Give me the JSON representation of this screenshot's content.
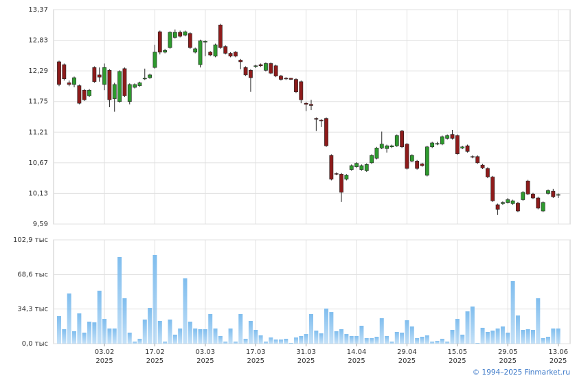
{
  "chart_data": [
    {
      "type": "candlestick",
      "categories": [
        null,
        null,
        null,
        null,
        null,
        null,
        null,
        null,
        null,
        [
          "03.02",
          "2025"
        ],
        null,
        null,
        null,
        null,
        null,
        null,
        null,
        null,
        null,
        [
          "17.02",
          "2025"
        ],
        null,
        null,
        null,
        null,
        null,
        null,
        null,
        null,
        null,
        [
          "03.03",
          "2025"
        ],
        null,
        null,
        null,
        null,
        null,
        null,
        null,
        null,
        null,
        [
          "17.03",
          "2025"
        ],
        null,
        null,
        null,
        null,
        null,
        null,
        null,
        null,
        null,
        [
          "31.03",
          "2025"
        ],
        null,
        null,
        null,
        null,
        null,
        null,
        null,
        null,
        null,
        [
          "14.04",
          "2025"
        ],
        null,
        null,
        null,
        null,
        null,
        null,
        null,
        null,
        null,
        [
          "29.04",
          "2025"
        ],
        null,
        null,
        null,
        null,
        null,
        null,
        null,
        null,
        null,
        [
          "15.05",
          "2025"
        ],
        null,
        null,
        null,
        null,
        null,
        null,
        null,
        null,
        null,
        [
          "29.05",
          "2025"
        ],
        null,
        null,
        null,
        null,
        null,
        null,
        null,
        null,
        null,
        [
          "13.06",
          "2025"
        ]
      ],
      "open": [
        12.45,
        12.4,
        12.08,
        12.05,
        12.03,
        11.95,
        11.85,
        12.35,
        12.22,
        12.05,
        12.3,
        11.8,
        11.75,
        12.33,
        11.75,
        12.0,
        12.03,
        12.15,
        12.17,
        12.35,
        12.98,
        12.62,
        12.7,
        12.88,
        12.97,
        12.92,
        12.95,
        12.62,
        12.4,
        12.8,
        12.62,
        12.55,
        13.1,
        12.72,
        12.6,
        12.62,
        12.48,
        12.35,
        12.3,
        12.37,
        12.4,
        12.3,
        12.42,
        12.38,
        12.2,
        12.16,
        12.16,
        12.14,
        12.1,
        11.72,
        11.7,
        11.45,
        11.42,
        11.45,
        10.8,
        10.48,
        10.47,
        10.38,
        10.55,
        10.6,
        10.55,
        10.53,
        10.67,
        10.75,
        10.93,
        10.92,
        10.95,
        10.97,
        11.23,
        11.0,
        10.7,
        10.7,
        10.65,
        10.45,
        10.95,
        11.0,
        11.0,
        11.1,
        11.17,
        11.15,
        10.93,
        10.97,
        10.78,
        10.78,
        10.63,
        10.57,
        10.42,
        9.93,
        9.95,
        9.97,
        9.95,
        9.96,
        10.02,
        10.35,
        10.12,
        10.05,
        9.82,
        10.13,
        10.17,
        10.1
      ],
      "high": [
        12.47,
        12.42,
        12.12,
        12.19,
        12.05,
        11.97,
        11.97,
        12.37,
        12.35,
        12.42,
        12.32,
        12.08,
        12.3,
        12.35,
        12.07,
        12.07,
        12.1,
        12.33,
        12.24,
        12.75,
        13.0,
        12.68,
        12.99,
        13.02,
        13.0,
        13.0,
        12.97,
        12.7,
        12.84,
        12.83,
        12.64,
        12.77,
        13.12,
        12.74,
        12.62,
        12.64,
        12.5,
        12.37,
        12.32,
        12.4,
        12.42,
        12.44,
        12.44,
        12.4,
        12.22,
        12.18,
        12.17,
        12.16,
        12.12,
        11.74,
        11.78,
        11.47,
        11.44,
        11.47,
        10.82,
        10.5,
        10.49,
        10.47,
        10.64,
        10.68,
        10.64,
        10.66,
        10.82,
        10.95,
        11.22,
        10.99,
        10.99,
        11.17,
        11.25,
        11.02,
        10.82,
        10.72,
        10.67,
        10.97,
        11.04,
        11.04,
        11.15,
        11.17,
        11.25,
        11.17,
        10.97,
        10.99,
        10.8,
        10.8,
        10.65,
        10.59,
        10.44,
        9.95,
        9.99,
        10.05,
        10.02,
        9.98,
        10.17,
        10.37,
        10.14,
        10.07,
        9.99,
        10.2,
        10.21,
        10.13
      ],
      "low": [
        12.02,
        12.12,
        12.02,
        12.0,
        11.7,
        11.76,
        11.83,
        12.08,
        12.1,
        11.95,
        11.65,
        11.57,
        11.73,
        11.83,
        11.7,
        11.98,
        12.01,
        12.13,
        12.15,
        12.33,
        12.58,
        12.6,
        12.68,
        12.86,
        12.88,
        12.9,
        12.68,
        12.6,
        12.35,
        12.55,
        12.55,
        12.53,
        12.68,
        12.58,
        12.53,
        12.53,
        12.32,
        12.2,
        11.92,
        12.34,
        12.36,
        12.28,
        12.23,
        12.18,
        12.12,
        12.13,
        12.13,
        11.9,
        11.72,
        11.58,
        11.6,
        11.23,
        11.3,
        10.95,
        10.36,
        10.45,
        9.98,
        10.36,
        10.53,
        10.58,
        10.53,
        10.51,
        10.65,
        10.73,
        10.91,
        10.85,
        10.93,
        10.95,
        10.93,
        10.55,
        10.68,
        10.55,
        10.6,
        10.43,
        10.93,
        10.98,
        10.98,
        11.08,
        11.08,
        10.81,
        10.91,
        10.85,
        10.75,
        10.65,
        10.56,
        10.4,
        9.98,
        9.75,
        9.93,
        9.95,
        9.93,
        9.8,
        10.0,
        10.1,
        10.03,
        9.85,
        9.8,
        10.11,
        10.05,
        10.05
      ],
      "close": [
        12.05,
        12.15,
        12.05,
        12.17,
        11.72,
        11.78,
        11.95,
        12.1,
        12.18,
        12.35,
        11.78,
        12.05,
        12.28,
        11.85,
        12.05,
        12.05,
        12.08,
        12.16,
        12.22,
        12.62,
        12.62,
        12.65,
        12.97,
        12.97,
        12.9,
        12.98,
        12.7,
        12.68,
        12.82,
        12.81,
        12.57,
        12.75,
        12.7,
        12.6,
        12.55,
        12.55,
        12.45,
        12.22,
        12.17,
        12.38,
        12.38,
        12.42,
        12.25,
        12.2,
        12.14,
        12.15,
        12.14,
        11.92,
        11.78,
        11.7,
        11.68,
        11.44,
        11.41,
        10.97,
        10.38,
        10.47,
        10.15,
        10.45,
        10.62,
        10.66,
        10.62,
        10.64,
        10.8,
        10.93,
        11.0,
        10.97,
        10.97,
        11.15,
        10.95,
        10.57,
        10.8,
        10.57,
        10.62,
        10.95,
        11.02,
        11.01,
        11.13,
        11.15,
        11.1,
        10.83,
        10.95,
        10.87,
        10.77,
        10.67,
        10.58,
        10.42,
        10.0,
        9.85,
        9.97,
        10.02,
        10.0,
        9.82,
        10.15,
        10.12,
        10.05,
        9.87,
        9.97,
        10.18,
        10.07,
        10.11
      ],
      "up_color": "#2e9a2e",
      "down_color": "#8e1b1b",
      "ylim": [
        9.59,
        13.37
      ],
      "yticks": [
        {
          "value": 9.59,
          "label": "9,59"
        },
        {
          "value": 10.13,
          "label": "10,13"
        },
        {
          "value": 10.67,
          "label": "10,67"
        },
        {
          "value": 11.21,
          "label": "11,21"
        },
        {
          "value": 11.75,
          "label": "11,75"
        },
        {
          "value": 12.29,
          "label": "12,29"
        },
        {
          "value": 12.83,
          "label": "12,83"
        },
        {
          "value": 13.37,
          "label": "13,37"
        }
      ],
      "grid": true
    },
    {
      "type": "bar",
      "values": [
        27.3,
        14.3,
        49.7,
        12.3,
        30,
        10.9,
        21.8,
        21.1,
        52.5,
        24.5,
        15,
        15,
        85.9,
        45,
        10.9,
        2,
        4.8,
        23.9,
        35.4,
        87.9,
        22.5,
        2,
        23.9,
        8.9,
        15,
        64.7,
        21.8,
        15,
        14.3,
        14.3,
        29.3,
        15,
        7.5,
        2,
        15,
        2,
        29.3,
        4.8,
        22.5,
        13.6,
        8.2,
        2,
        6.1,
        4.1,
        4.1,
        4.8,
        0.7,
        6.1,
        7.5,
        9.5,
        29.3,
        12.9,
        10.2,
        34.8,
        31.3,
        12.3,
        14.3,
        9.5,
        7.5,
        7.5,
        17.7,
        5.5,
        5.5,
        6.8,
        25.2,
        7.5,
        2,
        11.6,
        10.9,
        23.2,
        17,
        5.5,
        6.8,
        8.2,
        2,
        2.7,
        4.8,
        2,
        13.6,
        24.5,
        8.9,
        32,
        36.8,
        0.7,
        15.7,
        11.6,
        12.9,
        15,
        17,
        10.9,
        62,
        27.9,
        13.6,
        14.3,
        13.6,
        45,
        5.5,
        6.8,
        15,
        15
      ],
      "color": "#7fbdee",
      "ylim": [
        0,
        102.9
      ],
      "yticks": [
        {
          "value": 0,
          "label": "0,0 тыс"
        },
        {
          "value": 34.3,
          "label": "34,3 тыс"
        },
        {
          "value": 68.6,
          "label": "68,6 тыс"
        },
        {
          "value": 102.9,
          "label": "102,9 тыс"
        }
      ],
      "grid": true
    }
  ],
  "footer": "© 1994–2025 Finmarket.ru"
}
